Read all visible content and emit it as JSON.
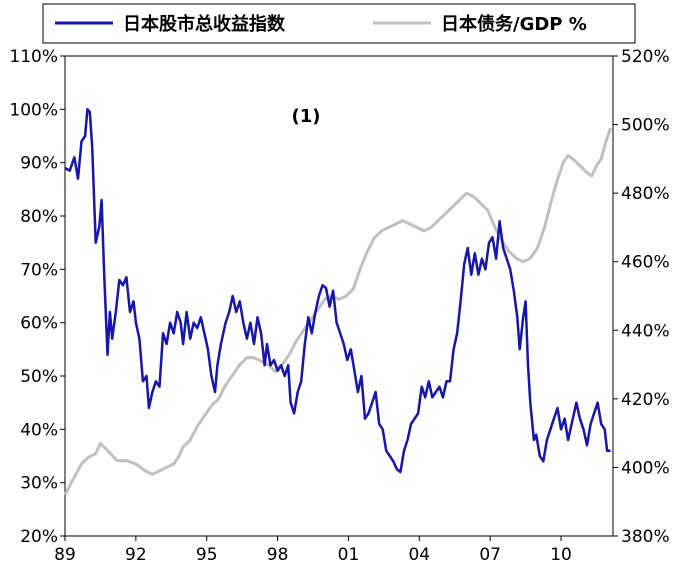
{
  "chart_data": {
    "type": "line",
    "annotation": "(1)",
    "x_tick_labels": [
      "89",
      "92",
      "95",
      "98",
      "01",
      "04",
      "07",
      "10"
    ],
    "x_tick_years": [
      1989,
      1992,
      1995,
      1998,
      2001,
      2004,
      2007,
      2010
    ],
    "xlim": [
      1989,
      2012.2
    ],
    "y_left": {
      "ylim": [
        20,
        110
      ],
      "ticks": [
        20,
        30,
        40,
        50,
        60,
        70,
        80,
        90,
        100,
        110
      ],
      "tick_labels": [
        "20%",
        "30%",
        "40%",
        "50%",
        "60%",
        "70%",
        "80%",
        "90%",
        "100%",
        "110%"
      ]
    },
    "y_right": {
      "ylim": [
        380,
        520
      ],
      "ticks": [
        380,
        400,
        420,
        440,
        460,
        480,
        500,
        520
      ],
      "tick_labels": [
        "380%",
        "400%",
        "420%",
        "440%",
        "460%",
        "480%",
        "500%",
        "520%"
      ]
    },
    "legend": {
      "placement": "top",
      "entries": [
        "日本股市总收益指数",
        "日本债务/GDP %"
      ]
    },
    "colors": {
      "stock": "#1515b0",
      "debt": "#c0c0c0"
    },
    "series": [
      {
        "name": "日本股市总收益指数",
        "axis": "left",
        "points": [
          [
            1989.0,
            89
          ],
          [
            1989.2,
            88.5
          ],
          [
            1989.4,
            91
          ],
          [
            1989.55,
            87
          ],
          [
            1989.7,
            94
          ],
          [
            1989.85,
            95
          ],
          [
            1989.95,
            100
          ],
          [
            1990.05,
            99.5
          ],
          [
            1990.15,
            93
          ],
          [
            1990.3,
            75
          ],
          [
            1990.45,
            78
          ],
          [
            1990.55,
            83
          ],
          [
            1990.65,
            70
          ],
          [
            1990.8,
            54
          ],
          [
            1990.9,
            62
          ],
          [
            1991.0,
            57
          ],
          [
            1991.15,
            62
          ],
          [
            1991.3,
            68
          ],
          [
            1991.45,
            67
          ],
          [
            1991.6,
            68.5
          ],
          [
            1991.75,
            62
          ],
          [
            1991.9,
            64
          ],
          [
            1992.0,
            60
          ],
          [
            1992.15,
            57
          ],
          [
            1992.3,
            49
          ],
          [
            1992.45,
            50
          ],
          [
            1992.55,
            44
          ],
          [
            1992.7,
            47
          ],
          [
            1992.85,
            49
          ],
          [
            1993.0,
            48
          ],
          [
            1993.15,
            58
          ],
          [
            1993.3,
            56
          ],
          [
            1993.45,
            60
          ],
          [
            1993.6,
            58
          ],
          [
            1993.75,
            62
          ],
          [
            1993.9,
            60
          ],
          [
            1994.0,
            56
          ],
          [
            1994.15,
            62
          ],
          [
            1994.3,
            57
          ],
          [
            1994.45,
            60
          ],
          [
            1994.6,
            59
          ],
          [
            1994.75,
            61
          ],
          [
            1994.9,
            58
          ],
          [
            1995.05,
            55
          ],
          [
            1995.2,
            50
          ],
          [
            1995.35,
            47
          ],
          [
            1995.45,
            52
          ],
          [
            1995.6,
            56
          ],
          [
            1995.8,
            60
          ],
          [
            1995.95,
            62
          ],
          [
            1996.1,
            65
          ],
          [
            1996.25,
            62
          ],
          [
            1996.4,
            64
          ],
          [
            1996.55,
            60
          ],
          [
            1996.7,
            57
          ],
          [
            1996.85,
            60
          ],
          [
            1997.0,
            56
          ],
          [
            1997.15,
            61
          ],
          [
            1997.3,
            58
          ],
          [
            1997.45,
            52
          ],
          [
            1997.55,
            56
          ],
          [
            1997.7,
            52
          ],
          [
            1997.85,
            53
          ],
          [
            1998.0,
            51
          ],
          [
            1998.15,
            52
          ],
          [
            1998.3,
            50
          ],
          [
            1998.45,
            52
          ],
          [
            1998.55,
            45
          ],
          [
            1998.7,
            43
          ],
          [
            1998.85,
            47
          ],
          [
            1999.0,
            49
          ],
          [
            1999.15,
            56
          ],
          [
            1999.3,
            61
          ],
          [
            1999.45,
            58
          ],
          [
            1999.6,
            62
          ],
          [
            1999.75,
            65
          ],
          [
            1999.9,
            67
          ],
          [
            2000.05,
            66.5
          ],
          [
            2000.2,
            63
          ],
          [
            2000.35,
            66
          ],
          [
            2000.5,
            60
          ],
          [
            2000.65,
            58
          ],
          [
            2000.8,
            56
          ],
          [
            2000.95,
            53
          ],
          [
            2001.1,
            55
          ],
          [
            2001.25,
            51
          ],
          [
            2001.4,
            47
          ],
          [
            2001.55,
            50
          ],
          [
            2001.7,
            42
          ],
          [
            2001.85,
            43
          ],
          [
            2002.0,
            45
          ],
          [
            2002.15,
            47
          ],
          [
            2002.3,
            41
          ],
          [
            2002.45,
            40
          ],
          [
            2002.6,
            36
          ],
          [
            2002.75,
            35
          ],
          [
            2002.9,
            34
          ],
          [
            2003.05,
            32.5
          ],
          [
            2003.2,
            32
          ],
          [
            2003.35,
            36
          ],
          [
            2003.5,
            38
          ],
          [
            2003.65,
            41
          ],
          [
            2003.8,
            42
          ],
          [
            2003.95,
            43
          ],
          [
            2004.1,
            48
          ],
          [
            2004.25,
            46
          ],
          [
            2004.4,
            49
          ],
          [
            2004.55,
            46
          ],
          [
            2004.7,
            47
          ],
          [
            2004.85,
            48
          ],
          [
            2005.0,
            46
          ],
          [
            2005.15,
            49
          ],
          [
            2005.3,
            49
          ],
          [
            2005.45,
            55
          ],
          [
            2005.6,
            58
          ],
          [
            2005.75,
            64
          ],
          [
            2005.9,
            71
          ],
          [
            2006.05,
            74
          ],
          [
            2006.2,
            69
          ],
          [
            2006.35,
            73
          ],
          [
            2006.5,
            69
          ],
          [
            2006.65,
            72
          ],
          [
            2006.8,
            70
          ],
          [
            2006.95,
            75
          ],
          [
            2007.1,
            76
          ],
          [
            2007.25,
            72
          ],
          [
            2007.4,
            79
          ],
          [
            2007.55,
            74
          ],
          [
            2007.7,
            72
          ],
          [
            2007.85,
            70
          ],
          [
            2008.0,
            66
          ],
          [
            2008.15,
            61
          ],
          [
            2008.25,
            55
          ],
          [
            2008.4,
            61
          ],
          [
            2008.5,
            64
          ],
          [
            2008.6,
            52
          ],
          [
            2008.7,
            45
          ],
          [
            2008.85,
            38
          ],
          [
            2008.95,
            39
          ],
          [
            2009.1,
            35
          ],
          [
            2009.25,
            34
          ],
          [
            2009.4,
            38
          ],
          [
            2009.55,
            40
          ],
          [
            2009.7,
            42
          ],
          [
            2009.85,
            44
          ],
          [
            2010.0,
            40
          ],
          [
            2010.15,
            42
          ],
          [
            2010.3,
            38
          ],
          [
            2010.5,
            42
          ],
          [
            2010.65,
            45
          ],
          [
            2010.8,
            42
          ],
          [
            2010.95,
            40
          ],
          [
            2011.1,
            37
          ],
          [
            2011.25,
            41
          ],
          [
            2011.4,
            43
          ],
          [
            2011.55,
            45
          ],
          [
            2011.7,
            41
          ],
          [
            2011.85,
            40
          ],
          [
            2011.95,
            36
          ],
          [
            2012.1,
            36
          ]
        ]
      },
      {
        "name": "日本债务/GDP %",
        "axis": "right",
        "points": [
          [
            1989.0,
            392
          ],
          [
            1989.3,
            396
          ],
          [
            1989.7,
            401
          ],
          [
            1990.0,
            403
          ],
          [
            1990.3,
            404
          ],
          [
            1990.5,
            407
          ],
          [
            1990.8,
            405
          ],
          [
            1991.2,
            402
          ],
          [
            1991.6,
            402
          ],
          [
            1992.0,
            401
          ],
          [
            1992.4,
            399
          ],
          [
            1992.7,
            398
          ],
          [
            1993.0,
            399
          ],
          [
            1993.3,
            400
          ],
          [
            1993.6,
            401
          ],
          [
            1993.8,
            403
          ],
          [
            1994.0,
            406
          ],
          [
            1994.3,
            408
          ],
          [
            1994.6,
            412
          ],
          [
            1994.9,
            415
          ],
          [
            1995.2,
            418
          ],
          [
            1995.5,
            420
          ],
          [
            1995.8,
            424
          ],
          [
            1996.1,
            427
          ],
          [
            1996.4,
            430
          ],
          [
            1996.7,
            432
          ],
          [
            1997.0,
            432
          ],
          [
            1997.3,
            431
          ],
          [
            1997.6,
            430
          ],
          [
            1997.9,
            428
          ],
          [
            1998.2,
            430
          ],
          [
            1998.5,
            433
          ],
          [
            1998.8,
            437
          ],
          [
            1999.1,
            440
          ],
          [
            1999.4,
            443
          ],
          [
            1999.7,
            446
          ],
          [
            2000.0,
            449
          ],
          [
            2000.3,
            450
          ],
          [
            2000.6,
            449
          ],
          [
            2000.9,
            450
          ],
          [
            2001.2,
            452
          ],
          [
            2001.5,
            458
          ],
          [
            2001.8,
            463
          ],
          [
            2002.1,
            467
          ],
          [
            2002.4,
            469
          ],
          [
            2002.7,
            470
          ],
          [
            2003.0,
            471
          ],
          [
            2003.3,
            472
          ],
          [
            2003.6,
            471
          ],
          [
            2003.9,
            470
          ],
          [
            2004.2,
            469
          ],
          [
            2004.5,
            470
          ],
          [
            2004.8,
            472
          ],
          [
            2005.1,
            474
          ],
          [
            2005.4,
            476
          ],
          [
            2005.7,
            478
          ],
          [
            2006.0,
            480
          ],
          [
            2006.3,
            479
          ],
          [
            2006.6,
            477
          ],
          [
            2006.9,
            475
          ],
          [
            2007.2,
            470
          ],
          [
            2007.5,
            466
          ],
          [
            2007.8,
            463
          ],
          [
            2008.1,
            461
          ],
          [
            2008.4,
            460
          ],
          [
            2008.7,
            461
          ],
          [
            2009.0,
            464
          ],
          [
            2009.3,
            470
          ],
          [
            2009.6,
            478
          ],
          [
            2009.85,
            484
          ],
          [
            2010.1,
            489
          ],
          [
            2010.3,
            491
          ],
          [
            2010.5,
            490
          ],
          [
            2010.8,
            488
          ],
          [
            2011.1,
            486
          ],
          [
            2011.3,
            485
          ],
          [
            2011.5,
            488
          ],
          [
            2011.7,
            490
          ],
          [
            2011.9,
            495
          ],
          [
            2012.1,
            499
          ]
        ]
      }
    ]
  }
}
